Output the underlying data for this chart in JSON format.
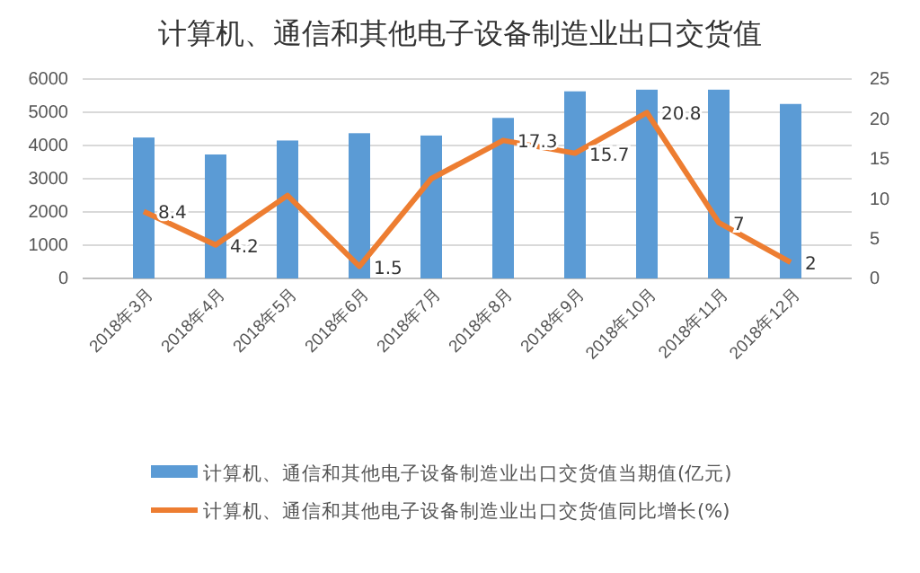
{
  "chart_data": {
    "type": "bar",
    "title": "计算机、通信和其他电子设备制造业出口交货值",
    "categories": [
      "2018年3月",
      "2018年4月",
      "2018年5月",
      "2018年6月",
      "2018年7月",
      "2018年8月",
      "2018年9月",
      "2018年10月",
      "2018年11月",
      "2018年12月"
    ],
    "series": [
      {
        "name": "计算机、通信和其他电子设备制造业出口交货值当期值(亿元)",
        "color": "#5b9bd5",
        "values": [
          4240,
          3730,
          4150,
          4370,
          4300,
          4830,
          5630,
          5680,
          5680,
          5250
        ]
      },
      {
        "name": "计算机、通信和其他电子设备制造业出口交货值同比增长(%)",
        "type": "line",
        "axis": "y2",
        "color": "#ed7d31",
        "values": [
          8.4,
          4.2,
          10.4,
          1.5,
          12.5,
          17.3,
          15.7,
          20.8,
          7,
          2
        ],
        "value_labels": [
          "8.4",
          "4.2",
          null,
          "1.5",
          null,
          "17.3",
          "15.7",
          "20.8",
          "7",
          "2"
        ]
      }
    ],
    "ylim": [
      0,
      6000
    ],
    "yticks": [
      0,
      1000,
      2000,
      3000,
      4000,
      5000,
      6000
    ],
    "y2lim": [
      0,
      25
    ],
    "y2ticks": [
      0,
      5,
      10,
      15,
      20,
      25
    ],
    "grid": "y",
    "legend": "bottom",
    "marker": "none",
    "line_style": "solid"
  }
}
